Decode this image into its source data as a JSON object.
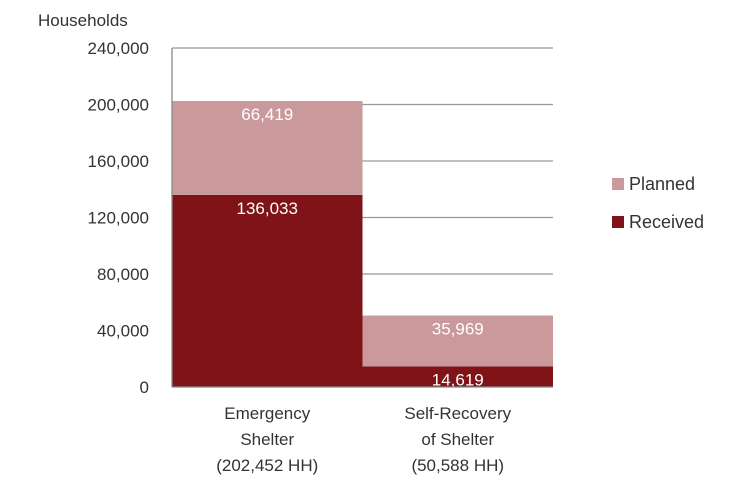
{
  "chart_data": {
    "type": "bar",
    "stacked": true,
    "ylabel": "Households",
    "ylim": [
      0,
      240000
    ],
    "yticks": [
      0,
      40000,
      80000,
      120000,
      160000,
      200000,
      240000
    ],
    "ytick_labels": [
      "0",
      "40,000",
      "80,000",
      "120,000",
      "160,000",
      "200,000",
      "240,000"
    ],
    "grid": true,
    "legend_position": "right",
    "categories": [
      [
        "Emergency",
        "Shelter",
        "(202,452 HH)"
      ],
      [
        "Self-Recovery",
        "of Shelter",
        "(50,588 HH)"
      ]
    ],
    "series": [
      {
        "name": "Received",
        "color": "#7f1318",
        "values": [
          136033,
          14619
        ],
        "labels": [
          "136,033",
          "14,619"
        ]
      },
      {
        "name": "Planned",
        "color": "#c9999b",
        "values": [
          66419,
          35969
        ],
        "labels": [
          "66,419",
          "35,969"
        ]
      }
    ],
    "legend": [
      {
        "name": "Planned",
        "color": "#c9999b"
      },
      {
        "name": "Received",
        "color": "#7f1318"
      }
    ]
  }
}
